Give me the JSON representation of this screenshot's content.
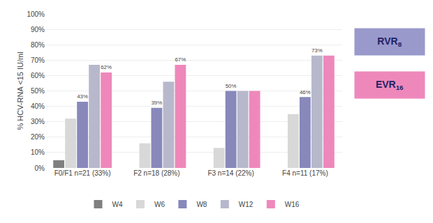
{
  "chart_data": {
    "type": "bar",
    "categories": [
      "F0/F1 n=21 (33%)",
      "F2 n=18 (28%)",
      "F3 n=14 (22%)",
      "F4 n=11 (17%)"
    ],
    "series": [
      {
        "name": "W4",
        "color": "#808080",
        "values": [
          5,
          0,
          0,
          0
        ],
        "value_labels": [
          null,
          null,
          null,
          null
        ]
      },
      {
        "name": "W6",
        "color": "#d8d8d8",
        "values": [
          32,
          16,
          13,
          35
        ],
        "value_labels": [
          null,
          null,
          null,
          null
        ]
      },
      {
        "name": "W8",
        "color": "#8888bb",
        "values": [
          43,
          39,
          50,
          46
        ],
        "value_labels": [
          "43%",
          "39%",
          "50%",
          "46%"
        ]
      },
      {
        "name": "W12",
        "color": "#b8b8cc",
        "values": [
          67,
          56,
          50,
          73
        ],
        "value_labels": [
          null,
          null,
          null,
          "73%"
        ]
      },
      {
        "name": "W16",
        "color": "#ee88bb",
        "values": [
          62,
          67,
          50,
          73
        ],
        "value_labels": [
          "62%",
          "67%",
          null,
          null
        ]
      }
    ],
    "data_labels": true,
    "ylabel": "% HCV-RNA <15 IU/ml",
    "ylim": [
      0,
      100
    ],
    "yticks": [
      {
        "value": 0,
        "label": "0%"
      },
      {
        "value": 10,
        "label": "10%"
      },
      {
        "value": 20,
        "label": "20%"
      },
      {
        "value": 30,
        "label": "30%"
      },
      {
        "value": 40,
        "label": "40%"
      },
      {
        "value": 50,
        "label": "50%"
      },
      {
        "value": 60,
        "label": "60%"
      },
      {
        "value": 70,
        "label": "70%"
      },
      {
        "value": 80,
        "label": "80%"
      },
      {
        "value": 90,
        "label": "90%"
      },
      {
        "value": 100,
        "label": "100%"
      }
    ],
    "grid": true,
    "legend": "bottom",
    "annotations": [
      {
        "text": "RVR",
        "subscript": "8",
        "color": "#9999cc"
      },
      {
        "text": "EVR",
        "subscript": "16",
        "color": "#ee88bb"
      }
    ]
  }
}
